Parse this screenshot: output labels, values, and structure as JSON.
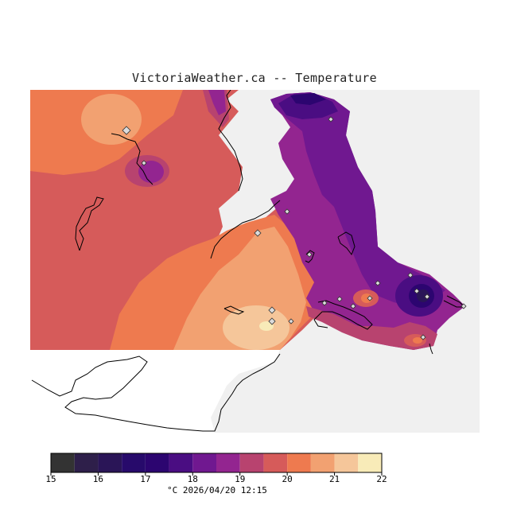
{
  "title": "VictoriaWeather.ca  --  Temperature",
  "legend": {
    "unit": "°C",
    "timestamp": "2026/04/20 12:15",
    "ticks": [
      "15",
      "16",
      "17",
      "18",
      "19",
      "20",
      "21",
      "22"
    ],
    "min": 15,
    "max": 22,
    "step": 0.5,
    "colors": [
      "#333333",
      "#2e1f4a",
      "#2a1557",
      "#270a6b",
      "#2c0570",
      "#4a0d82",
      "#701890",
      "#932590",
      "#b8436f",
      "#d65b5a",
      "#ee7a4f",
      "#f2a171",
      "#f5c69a",
      "#f8ebb8"
    ]
  },
  "colors": {
    "land": "#ffffff",
    "water_outside": "#f0f0f0",
    "coastline": "#000000",
    "station_marker": "#dcdcdc"
  },
  "chart_data": {
    "type": "heatmap",
    "title": "VictoriaWeather.ca  --  Temperature",
    "unit": "°C",
    "scale_range": [
      15,
      22
    ],
    "scale_ticks": [
      15,
      16,
      17,
      18,
      19,
      20,
      21,
      22
    ],
    "timestamp": "2026/04/20 12:15"
  }
}
